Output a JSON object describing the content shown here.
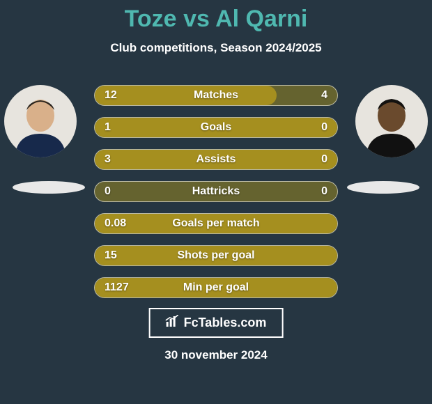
{
  "background_color": "#263642",
  "accent_color": "#4fb8b0",
  "bar_fill_color": "#a58f1f",
  "bar_track_color": "#65632f",
  "text_color": "#ffffff",
  "title": {
    "player_a": "Toze",
    "vs_word": "vs",
    "player_b": "Al Qarni",
    "fontsize": 34
  },
  "subtitle": {
    "text": "Club competitions, Season 2024/2025",
    "fontsize": 17
  },
  "brand": {
    "text": "FcTables.com",
    "fontsize": 18
  },
  "date": {
    "text": "30 november 2024",
    "fontsize": 17
  },
  "bars": {
    "label_fontsize": 16,
    "value_fontsize": 16,
    "rows": [
      {
        "label": "Matches",
        "left": "12",
        "right": "4",
        "fill_pct": 75
      },
      {
        "label": "Goals",
        "left": "1",
        "right": "0",
        "fill_pct": 100
      },
      {
        "label": "Assists",
        "left": "3",
        "right": "0",
        "fill_pct": 100
      },
      {
        "label": "Hattricks",
        "left": "0",
        "right": "0",
        "fill_pct": 0
      },
      {
        "label": "Goals per match",
        "left": "0.08",
        "right": "",
        "fill_pct": 100
      },
      {
        "label": "Shots per goal",
        "left": "15",
        "right": "",
        "fill_pct": 100
      },
      {
        "label": "Min per goal",
        "left": "1127",
        "right": "",
        "fill_pct": 100
      }
    ]
  },
  "avatars": {
    "left_jersey_color": "#17294b",
    "left_skin_color": "#d9b08a",
    "right_jersey_color": "#111111",
    "right_skin_color": "#6a4a2d"
  }
}
